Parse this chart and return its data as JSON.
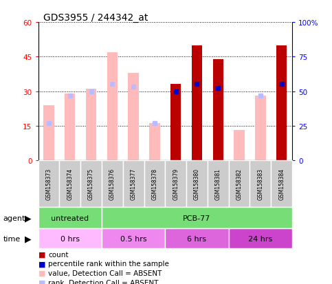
{
  "title": "GDS3955 / 244342_at",
  "samples": [
    "GSM158373",
    "GSM158374",
    "GSM158375",
    "GSM158376",
    "GSM158377",
    "GSM158378",
    "GSM158379",
    "GSM158380",
    "GSM158381",
    "GSM158382",
    "GSM158383",
    "GSM158384"
  ],
  "count": [
    null,
    null,
    null,
    null,
    null,
    null,
    33,
    50,
    44,
    null,
    null,
    50
  ],
  "rank_present": [
    null,
    null,
    null,
    null,
    null,
    null,
    50,
    55,
    52,
    null,
    null,
    55
  ],
  "value_absent": [
    24,
    29,
    31,
    47,
    38,
    16,
    null,
    null,
    null,
    13,
    28,
    null
  ],
  "rank_absent": [
    27,
    47,
    50,
    55,
    53,
    27,
    null,
    null,
    null,
    null,
    47,
    null
  ],
  "ylim_left": [
    0,
    60
  ],
  "ylim_right": [
    0,
    100
  ],
  "yticks_left": [
    0,
    15,
    30,
    45,
    60
  ],
  "yticks_right": [
    0,
    25,
    50,
    75,
    100
  ],
  "ytick_labels_left": [
    "0",
    "15",
    "30",
    "45",
    "60"
  ],
  "ytick_labels_right": [
    "0",
    "25",
    "50",
    "75",
    "100%"
  ],
  "color_count": "#bb0000",
  "color_rank_present": "#0000cc",
  "color_value_absent": "#ffbbbb",
  "color_rank_absent": "#bbbbff",
  "agent_groups": [
    {
      "label": "untreated",
      "start": 0,
      "end": 3,
      "color": "#77dd77"
    },
    {
      "label": "PCB-77",
      "start": 3,
      "end": 12,
      "color": "#77dd77"
    }
  ],
  "time_colors": [
    "#ffbbff",
    "#ee88ee",
    "#dd66dd",
    "#cc44cc"
  ],
  "time_groups": [
    {
      "label": "0 hrs",
      "start": 0,
      "end": 3
    },
    {
      "label": "0.5 hrs",
      "start": 3,
      "end": 6
    },
    {
      "label": "6 hrs",
      "start": 6,
      "end": 9
    },
    {
      "label": "24 hrs",
      "start": 9,
      "end": 12
    }
  ],
  "legend_labels": [
    "count",
    "percentile rank within the sample",
    "value, Detection Call = ABSENT",
    "rank, Detection Call = ABSENT"
  ],
  "legend_colors": [
    "#bb0000",
    "#0000cc",
    "#ffbbbb",
    "#bbbbff"
  ],
  "bar_width": 0.5
}
